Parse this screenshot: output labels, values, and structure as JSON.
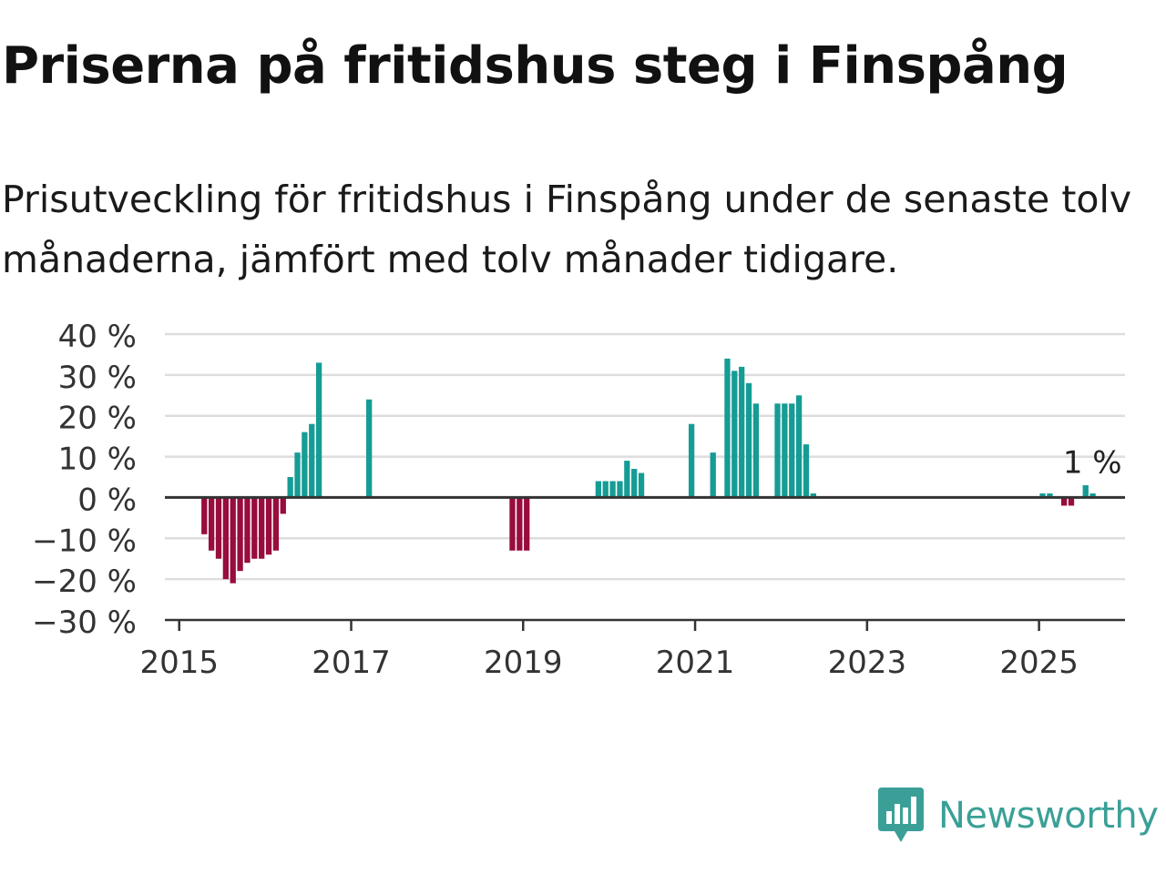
{
  "title": "Priserna på fritidshus steg i Finspång",
  "subtitle": "Prisutveckling för fritidshus i Finspång under de senaste tolv månaderna, jämfört med tolv månader tidigare.",
  "brand": {
    "name": "Newsworthy",
    "icon": "newsworthy-logo-icon",
    "color": "#3aa097"
  },
  "chart_data": {
    "type": "bar",
    "title": "",
    "xlabel": "",
    "ylabel": "",
    "ylim": [
      -30,
      40
    ],
    "y_ticks": [
      40,
      30,
      20,
      10,
      0,
      -10,
      -20,
      -30
    ],
    "y_tick_labels": [
      "40 %",
      "30 %",
      "20 %",
      "10 %",
      "0 %",
      "−10 %",
      "−20 %",
      "−30 %"
    ],
    "x_ticks": [
      2015,
      2017,
      2019,
      2021,
      2023,
      2025
    ],
    "x_tick_labels": [
      "2015",
      "2017",
      "2019",
      "2021",
      "2023",
      "2025"
    ],
    "xlim": [
      "2014-11",
      "2026-01"
    ],
    "grid": true,
    "colors": {
      "positive": "#159c95",
      "negative": "#980c3e",
      "grid": "#dddddd",
      "zero_line": "#333333"
    },
    "annotation": {
      "label": "1 %",
      "date": "2025-08",
      "value": 1
    },
    "series": [
      {
        "values": [
          {
            "date": "2015-04",
            "value": -9
          },
          {
            "date": "2015-05",
            "value": -13
          },
          {
            "date": "2015-06",
            "value": -15
          },
          {
            "date": "2015-07",
            "value": -20
          },
          {
            "date": "2015-08",
            "value": -21
          },
          {
            "date": "2015-09",
            "value": -18
          },
          {
            "date": "2015-10",
            "value": -16
          },
          {
            "date": "2015-11",
            "value": -15
          },
          {
            "date": "2015-12",
            "value": -15
          },
          {
            "date": "2016-01",
            "value": -14
          },
          {
            "date": "2016-02",
            "value": -13
          },
          {
            "date": "2016-03",
            "value": -4
          },
          {
            "date": "2016-04",
            "value": 5
          },
          {
            "date": "2016-05",
            "value": 11
          },
          {
            "date": "2016-06",
            "value": 16
          },
          {
            "date": "2016-07",
            "value": 18
          },
          {
            "date": "2016-08",
            "value": 33
          },
          {
            "date": "2017-03",
            "value": 24
          },
          {
            "date": "2018-11",
            "value": -13
          },
          {
            "date": "2018-12",
            "value": -13
          },
          {
            "date": "2019-01",
            "value": -13
          },
          {
            "date": "2019-11",
            "value": 4
          },
          {
            "date": "2019-12",
            "value": 4
          },
          {
            "date": "2020-01",
            "value": 4
          },
          {
            "date": "2020-02",
            "value": 4
          },
          {
            "date": "2020-03",
            "value": 9
          },
          {
            "date": "2020-04",
            "value": 7
          },
          {
            "date": "2020-05",
            "value": 6
          },
          {
            "date": "2020-12",
            "value": 18
          },
          {
            "date": "2021-03",
            "value": 11
          },
          {
            "date": "2021-05",
            "value": 34
          },
          {
            "date": "2021-06",
            "value": 31
          },
          {
            "date": "2021-07",
            "value": 32
          },
          {
            "date": "2021-08",
            "value": 28
          },
          {
            "date": "2021-09",
            "value": 23
          },
          {
            "date": "2021-12",
            "value": 23
          },
          {
            "date": "2022-01",
            "value": 23
          },
          {
            "date": "2022-02",
            "value": 23
          },
          {
            "date": "2022-03",
            "value": 25
          },
          {
            "date": "2022-04",
            "value": 13
          },
          {
            "date": "2022-05",
            "value": 1
          },
          {
            "date": "2025-01",
            "value": 1
          },
          {
            "date": "2025-02",
            "value": 1
          },
          {
            "date": "2025-04",
            "value": -2
          },
          {
            "date": "2025-05",
            "value": -2
          },
          {
            "date": "2025-07",
            "value": 3
          },
          {
            "date": "2025-08",
            "value": 1
          }
        ]
      }
    ]
  }
}
